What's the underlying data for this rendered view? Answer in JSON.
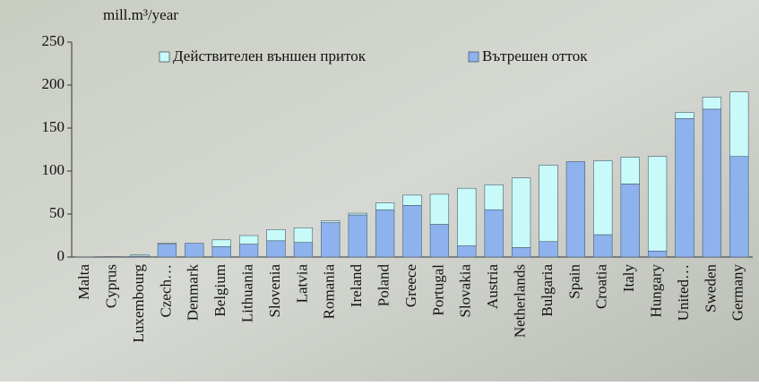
{
  "chart_data": {
    "type": "bar",
    "stacked": true,
    "y_label": "mill.m³/year",
    "categories": [
      "Malta",
      "Cyprus",
      "Luxembourg",
      "Czech…",
      "Denmark",
      "Belgium",
      "Lithuania",
      "Slovenia",
      "Latvia",
      "Romania",
      "Ireland",
      "Poland",
      "Greece",
      "Portugal",
      "Slovakia",
      "Austria",
      "Netherlands",
      "Bulgaria",
      "Spain",
      "Croatia",
      "Italy",
      "Hungary",
      "United…",
      "Sweden",
      "Germany"
    ],
    "series": [
      {
        "name": "Действителен външен приток",
        "color": "#c8fafa",
        "values": [
          0,
          0,
          1.5,
          1,
          0,
          8,
          10,
          13,
          17,
          2,
          2,
          8,
          12,
          35,
          67,
          29,
          81,
          89,
          0,
          86,
          31,
          110,
          7,
          14,
          75
        ]
      },
      {
        "name": "Вътрешен отток",
        "color": "#8eb2ee",
        "values": [
          0.1,
          0.5,
          1,
          15,
          16,
          12,
          15,
          19,
          17,
          40,
          49,
          55,
          60,
          38,
          13,
          55,
          11,
          18,
          111,
          26,
          85,
          7,
          161,
          172,
          117
        ]
      }
    ],
    "ylim": [
      0,
      250
    ],
    "yticks": [
      0,
      50,
      100,
      150,
      200,
      250
    ],
    "grid": false
  }
}
